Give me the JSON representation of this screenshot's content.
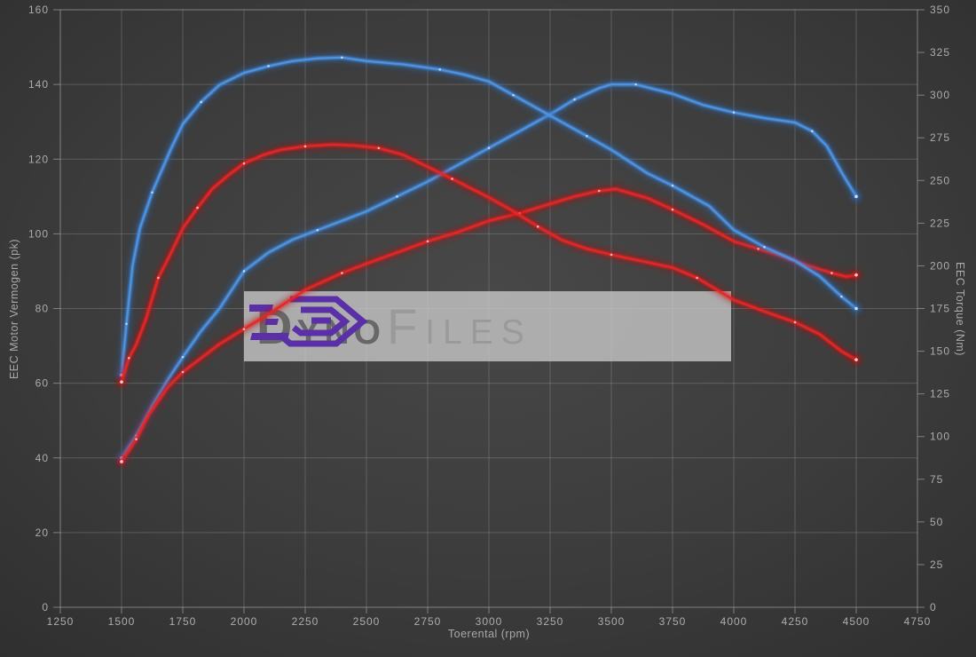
{
  "watermark": {
    "brand_part1": "Dyno",
    "brand_part2": "Files",
    "logo_color": "#5a2fa8",
    "box_color": "#cbcbcb"
  },
  "chart_data": {
    "type": "line",
    "title": "",
    "xlabel": "Toerental (rpm)",
    "ylabel_left": "EEC Motor Vermogen (pk)",
    "ylabel_right": "EEC Torque (Nm)",
    "x_range": [
      1250,
      4750
    ],
    "y_left_range": [
      0,
      160
    ],
    "y_right_range": [
      0,
      350
    ],
    "x_ticks": [
      1250,
      1500,
      1750,
      2000,
      2250,
      2500,
      2750,
      3000,
      3250,
      3500,
      3750,
      4000,
      4250,
      4500,
      4750
    ],
    "y_left_ticks": [
      0,
      20,
      40,
      60,
      80,
      100,
      120,
      140,
      160
    ],
    "y_right_ticks": [
      0,
      25,
      50,
      75,
      100,
      125,
      150,
      175,
      200,
      225,
      250,
      275,
      300,
      325,
      350
    ],
    "grid": true,
    "legend": "none",
    "colors": {
      "background": "#3c3c3c",
      "gridline": "#a0a0a0",
      "tick_text": "#adadad",
      "blue_core": "#4e94e4",
      "blue_glow": "#2a6cc4",
      "blue_dot": "#cfe3fa",
      "red_core": "#e62626",
      "red_glow": "#c61010",
      "red_dot": "#ffd0d0"
    },
    "series": [
      {
        "name": "power-tuned",
        "axis": "left",
        "unit": "pk",
        "color": "#4e94e4",
        "glow": "#2a6cc4",
        "dot": "#cfe3fa",
        "peak": {
          "rpm": 3500,
          "value": 140
        },
        "points": [
          [
            1500,
            40
          ],
          [
            1560,
            46
          ],
          [
            1625,
            54
          ],
          [
            1690,
            61
          ],
          [
            1750,
            67
          ],
          [
            1825,
            74
          ],
          [
            1900,
            80
          ],
          [
            2000,
            90
          ],
          [
            2100,
            95
          ],
          [
            2200,
            98.5
          ],
          [
            2300,
            101
          ],
          [
            2400,
            103.5
          ],
          [
            2500,
            106
          ],
          [
            2625,
            110
          ],
          [
            2750,
            114
          ],
          [
            2875,
            118.5
          ],
          [
            3000,
            123
          ],
          [
            3125,
            127.5
          ],
          [
            3250,
            132
          ],
          [
            3350,
            136
          ],
          [
            3450,
            139
          ],
          [
            3500,
            140
          ],
          [
            3600,
            140
          ],
          [
            3750,
            137.5
          ],
          [
            3875,
            134.5
          ],
          [
            4000,
            132.5
          ],
          [
            4125,
            131
          ],
          [
            4250,
            129.8
          ],
          [
            4320,
            127.5
          ],
          [
            4380,
            123.5
          ],
          [
            4440,
            116.5
          ],
          [
            4500,
            110
          ]
        ]
      },
      {
        "name": "power-stock",
        "axis": "left",
        "unit": "pk",
        "color": "#e62626",
        "glow": "#c61010",
        "dot": "#ffd0d0",
        "peak": {
          "rpm": 3520,
          "value": 112
        },
        "points": [
          [
            1500,
            39
          ],
          [
            1560,
            45
          ],
          [
            1610,
            51.5
          ],
          [
            1690,
            59
          ],
          [
            1750,
            63
          ],
          [
            1800,
            65.5
          ],
          [
            1900,
            70.5
          ],
          [
            2000,
            74.5
          ],
          [
            2100,
            78.5
          ],
          [
            2250,
            85
          ],
          [
            2400,
            89.5
          ],
          [
            2500,
            92
          ],
          [
            2625,
            95
          ],
          [
            2750,
            98
          ],
          [
            2875,
            100.5
          ],
          [
            3000,
            103.5
          ],
          [
            3125,
            105.5
          ],
          [
            3250,
            108
          ],
          [
            3350,
            110
          ],
          [
            3450,
            111.5
          ],
          [
            3520,
            112
          ],
          [
            3650,
            109.5
          ],
          [
            3750,
            106.5
          ],
          [
            3875,
            102.5
          ],
          [
            4000,
            98
          ],
          [
            4100,
            96
          ],
          [
            4200,
            94
          ],
          [
            4300,
            91.5
          ],
          [
            4400,
            89.5
          ],
          [
            4460,
            88.5
          ],
          [
            4500,
            89
          ]
        ]
      },
      {
        "name": "torque-tuned",
        "axis": "right",
        "unit": "Nm",
        "color": "#4e94e4",
        "glow": "#2a6cc4",
        "dot": "#cfe3fa",
        "peak": {
          "rpm": 2400,
          "value": 322
        },
        "points": [
          [
            1500,
            136
          ],
          [
            1520,
            166
          ],
          [
            1545,
            200
          ],
          [
            1575,
            222
          ],
          [
            1625,
            243
          ],
          [
            1700,
            268
          ],
          [
            1750,
            283
          ],
          [
            1825,
            296
          ],
          [
            1900,
            306
          ],
          [
            2000,
            313
          ],
          [
            2100,
            317
          ],
          [
            2200,
            320
          ],
          [
            2300,
            321.5
          ],
          [
            2400,
            322
          ],
          [
            2500,
            320
          ],
          [
            2650,
            318
          ],
          [
            2800,
            315
          ],
          [
            2900,
            312
          ],
          [
            3000,
            308
          ],
          [
            3100,
            300
          ],
          [
            3200,
            292
          ],
          [
            3300,
            284
          ],
          [
            3400,
            276
          ],
          [
            3500,
            268
          ],
          [
            3650,
            254
          ],
          [
            3750,
            247
          ],
          [
            3900,
            235
          ],
          [
            4000,
            221
          ],
          [
            4125,
            211
          ],
          [
            4250,
            203
          ],
          [
            4350,
            194
          ],
          [
            4440,
            182
          ],
          [
            4500,
            175
          ]
        ]
      },
      {
        "name": "torque-stock",
        "axis": "right",
        "unit": "Nm",
        "color": "#e62626",
        "glow": "#c61010",
        "dot": "#ffd0d0",
        "peak": {
          "rpm": 2360,
          "value": 271
        },
        "points": [
          [
            1500,
            132
          ],
          [
            1530,
            146
          ],
          [
            1560,
            154
          ],
          [
            1600,
            169
          ],
          [
            1650,
            193
          ],
          [
            1700,
            207
          ],
          [
            1750,
            222
          ],
          [
            1810,
            234
          ],
          [
            1870,
            245
          ],
          [
            1935,
            253
          ],
          [
            2000,
            260
          ],
          [
            2080,
            265
          ],
          [
            2150,
            268
          ],
          [
            2250,
            270
          ],
          [
            2360,
            271
          ],
          [
            2450,
            270.5
          ],
          [
            2550,
            269
          ],
          [
            2650,
            265
          ],
          [
            2750,
            258
          ],
          [
            2850,
            251
          ],
          [
            3000,
            240
          ],
          [
            3100,
            232
          ],
          [
            3200,
            223
          ],
          [
            3300,
            215
          ],
          [
            3400,
            210
          ],
          [
            3500,
            206.5
          ],
          [
            3650,
            202
          ],
          [
            3750,
            199
          ],
          [
            3850,
            193
          ],
          [
            4000,
            180
          ],
          [
            4150,
            172
          ],
          [
            4250,
            167
          ],
          [
            4350,
            160
          ],
          [
            4440,
            150
          ],
          [
            4500,
            145
          ]
        ]
      }
    ]
  }
}
